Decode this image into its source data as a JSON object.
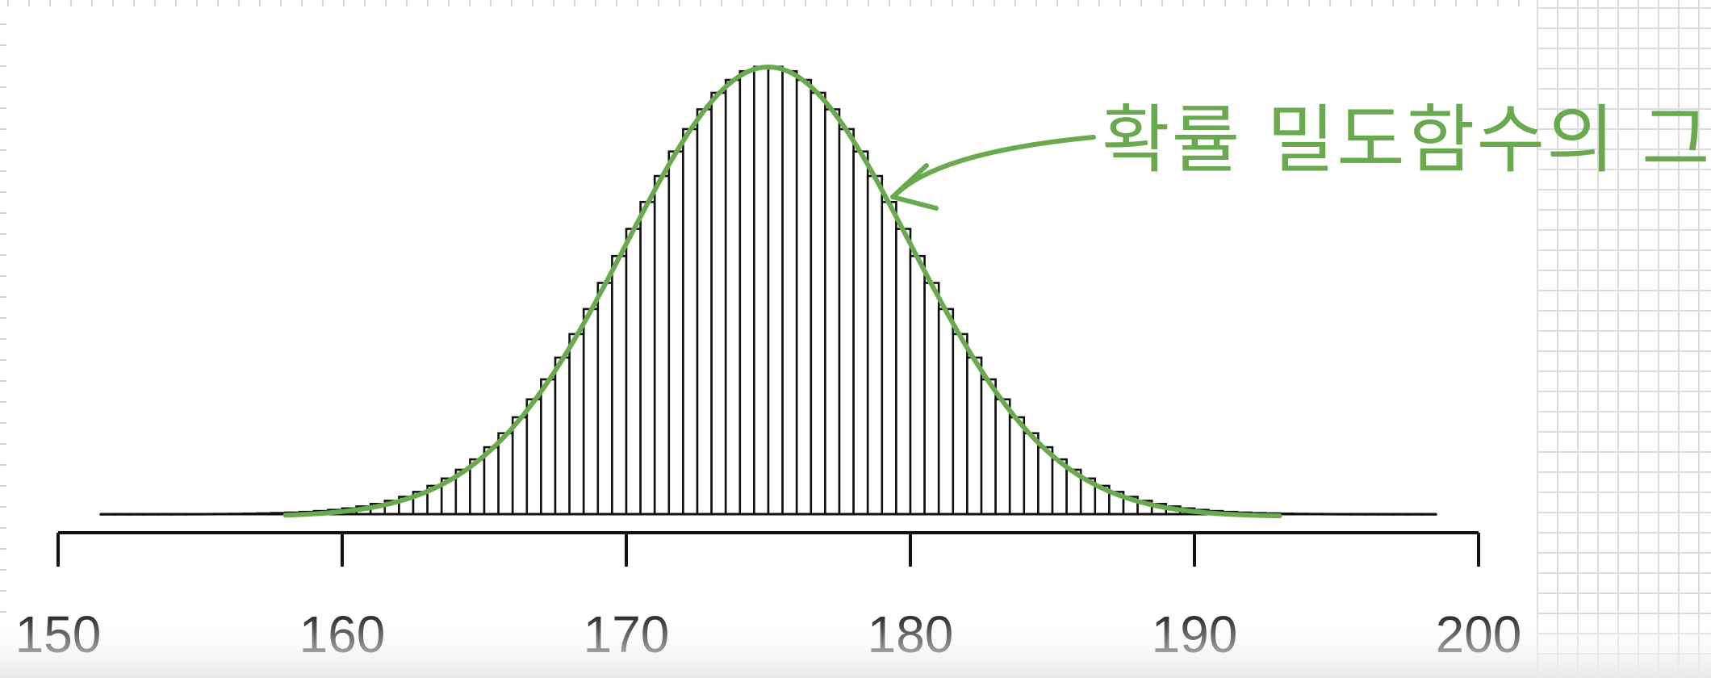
{
  "chart_data": {
    "type": "bar",
    "title": "",
    "xlabel": "",
    "ylabel": "",
    "x_ticks": [
      150,
      160,
      170,
      180,
      190,
      200
    ],
    "xlim": [
      150,
      200
    ],
    "bin_width": 0.5,
    "bin_range": [
      151.5,
      198.5
    ],
    "distribution_mean": 175,
    "distribution_sd": 5,
    "peak_relative_height": 1.0,
    "density_curve": {
      "label": "확률 밀도함수의 그래프",
      "color": "#6aaa4f",
      "x_range": [
        158,
        193
      ]
    },
    "grid": false,
    "legend": "none"
  },
  "colors": {
    "bars_stroke": "#111111",
    "bars_fill": "#ffffff",
    "axis": "#111111",
    "curve": "#6aaa4f",
    "notebook_grid": "#dcdcdc"
  }
}
